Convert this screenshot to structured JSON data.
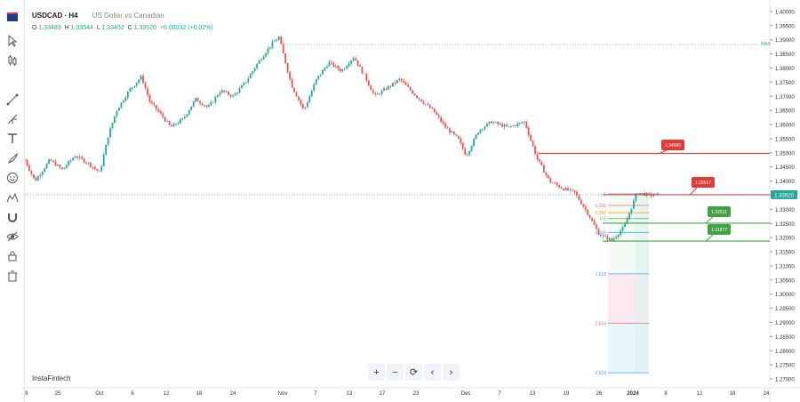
{
  "header": {
    "symbol": "USDCAD · H4",
    "description": "US Dollar vs Canadian",
    "ohlc": {
      "o_label": "O",
      "o": "1.33489",
      "h_label": "H",
      "h": "1.33544",
      "l_label": "L",
      "l": "1.33452",
      "c_label": "C",
      "c": "1.33520",
      "change": "+0.00032 (+0.02%)"
    }
  },
  "watermark": "InstaFintech",
  "toolbar": {
    "icons": [
      "flag-icon",
      "cursor-icon",
      "candles-icon",
      "trend-line-icon",
      "pitchfork-icon",
      "text-icon",
      "brush-icon",
      "emoji-icon",
      "pattern-icon",
      "magnet-icon",
      "eye-icon",
      "lock-icon",
      "trash-icon"
    ]
  },
  "nav": {
    "zoom_in": "+",
    "zoom_out": "−",
    "reset": "⟳",
    "left": "‹",
    "right": "›"
  },
  "colors": {
    "up": "#26a69a",
    "down": "#ef5350",
    "resistance": "#e53935",
    "support": "#43a047",
    "price_tag": "#26a69a"
  },
  "chart_data": {
    "type": "candlestick",
    "ylim": [
      1.2675,
      1.4025
    ],
    "y_ticks": [
      "1.40000",
      "1.39500",
      "1.39000",
      "1.38500",
      "1.38000",
      "1.37500",
      "1.37000",
      "1.36500",
      "1.36000",
      "1.35500",
      "1.35000",
      "1.34500",
      "1.34000",
      "1.33500",
      "1.33000",
      "1.32500",
      "1.32000",
      "1.31500",
      "1.31000",
      "1.30500",
      "1.30000",
      "1.29500",
      "1.29000",
      "1.28500",
      "1.28000",
      "1.27500",
      "1.27000"
    ],
    "x_ticks": [
      "19",
      "25",
      "Oct",
      "6",
      "12",
      "18",
      "24",
      "Nov",
      "7",
      "13",
      "17",
      "23",
      "Dec",
      "7",
      "13",
      "19",
      "26",
      "2024",
      "8",
      "12",
      "18",
      "24"
    ],
    "current_price": "1.33520",
    "max_label": "MAX",
    "close_path": [
      [
        0.0,
        1.3475
      ],
      [
        0.012,
        1.34
      ],
      [
        0.03,
        1.3475
      ],
      [
        0.045,
        1.344
      ],
      [
        0.06,
        1.349
      ],
      [
        0.075,
        1.3465
      ],
      [
        0.09,
        1.343
      ],
      [
        0.1,
        1.356
      ],
      [
        0.11,
        1.365
      ],
      [
        0.125,
        1.372
      ],
      [
        0.14,
        1.377
      ],
      [
        0.15,
        1.368
      ],
      [
        0.165,
        1.363
      ],
      [
        0.175,
        1.359
      ],
      [
        0.19,
        1.362
      ],
      [
        0.205,
        1.369
      ],
      [
        0.22,
        1.366
      ],
      [
        0.235,
        1.372
      ],
      [
        0.25,
        1.37
      ],
      [
        0.265,
        1.375
      ],
      [
        0.28,
        1.382
      ],
      [
        0.295,
        1.388
      ],
      [
        0.305,
        1.391
      ],
      [
        0.32,
        1.374
      ],
      [
        0.335,
        1.365
      ],
      [
        0.35,
        1.376
      ],
      [
        0.365,
        1.382
      ],
      [
        0.38,
        1.379
      ],
      [
        0.395,
        1.384
      ],
      [
        0.41,
        1.376
      ],
      [
        0.42,
        1.37
      ],
      [
        0.435,
        1.373
      ],
      [
        0.45,
        1.376
      ],
      [
        0.47,
        1.37
      ],
      [
        0.49,
        1.365
      ],
      [
        0.505,
        1.359
      ],
      [
        0.52,
        1.355
      ],
      [
        0.53,
        1.349
      ],
      [
        0.545,
        1.358
      ],
      [
        0.56,
        1.361
      ],
      [
        0.58,
        1.359
      ],
      [
        0.6,
        1.361
      ],
      [
        0.615,
        1.348
      ],
      [
        0.63,
        1.34
      ],
      [
        0.645,
        1.3375
      ],
      [
        0.66,
        1.336
      ],
      [
        0.675,
        1.329
      ],
      [
        0.69,
        1.321
      ],
      [
        0.705,
        1.319
      ],
      [
        0.72,
        1.324
      ],
      [
        0.735,
        1.336
      ],
      [
        0.75,
        1.335
      ],
      [
        0.76,
        1.3352
      ]
    ],
    "lines": [
      {
        "label": "1.34980",
        "price": 1.3498,
        "color": "resistance"
      },
      {
        "label": "1.33517",
        "price": 1.33517,
        "color": "resistance"
      },
      {
        "label": "1.32511",
        "price": 1.32511,
        "color": "support"
      },
      {
        "label": "1.31877",
        "price": 1.31877,
        "color": "support"
      }
    ],
    "fib": {
      "start_price": 1.3355,
      "end_price": 1.318,
      "levels": [
        {
          "label": "0",
          "ratio": 0
        },
        {
          "label": "0.236",
          "ratio": 0.236
        },
        {
          "label": "0.382",
          "ratio": 0.382
        },
        {
          "label": "0.5",
          "ratio": 0.5
        },
        {
          "label": "0.786",
          "ratio": 0.786
        },
        {
          "label": "1.618",
          "ratio": 1.618
        },
        {
          "label": "2.618",
          "ratio": 2.618
        },
        {
          "label": "3.618",
          "ratio": 3.618
        }
      ]
    }
  }
}
